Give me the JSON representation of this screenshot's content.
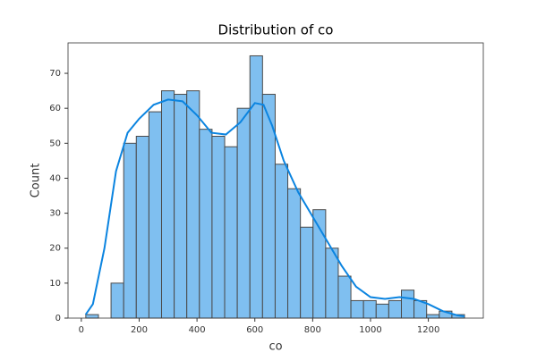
{
  "chart_data": {
    "type": "histogram",
    "title": "Distribution of co",
    "x_label": "co",
    "y_label": "Count",
    "bins": [
      15.5,
      59.2,
      102.8,
      146.5,
      190.1,
      233.8,
      277.4,
      321.1,
      364.7,
      408.4,
      452,
      495.7,
      539.3,
      583,
      626.6,
      670.3,
      713.9,
      757.6,
      801.2,
      844.9,
      888.5,
      932.2,
      975.8,
      1019.5,
      1063.1,
      1106.8,
      1150.4,
      1194.1,
      1237.7,
      1281.4,
      1325
    ],
    "values": [
      1,
      0,
      10,
      50,
      52,
      59,
      65,
      64,
      65,
      54,
      52,
      49,
      60,
      75,
      64,
      44,
      37,
      26,
      31,
      20,
      12,
      5,
      5,
      4,
      5,
      8,
      5,
      1,
      2,
      1
    ],
    "color": "#7fbff0",
    "edge_color": "#4a4a4a",
    "kde": {
      "color": "#0b84e0",
      "x": [
        15,
        40,
        80,
        120,
        160,
        200,
        250,
        300,
        350,
        400,
        450,
        500,
        550,
        600,
        630,
        660,
        700,
        750,
        800,
        850,
        900,
        950,
        1000,
        1050,
        1100,
        1150,
        1200,
        1250,
        1300,
        1325
      ],
      "values": [
        1,
        4,
        20,
        42,
        53,
        57,
        61,
        62.5,
        62,
        58,
        53,
        52.5,
        56,
        61.5,
        61,
        55,
        45,
        36,
        29,
        22,
        15,
        9,
        6,
        5.5,
        6,
        5.5,
        4,
        2,
        0.8,
        0.5
      ]
    },
    "xlim": [
      -46,
      1390
    ],
    "ylim": [
      0,
      78.7
    ],
    "xticks": [
      0,
      200,
      400,
      600,
      800,
      1000,
      1200
    ],
    "yticks": [
      0,
      10,
      20,
      30,
      40,
      50,
      60,
      70
    ]
  }
}
